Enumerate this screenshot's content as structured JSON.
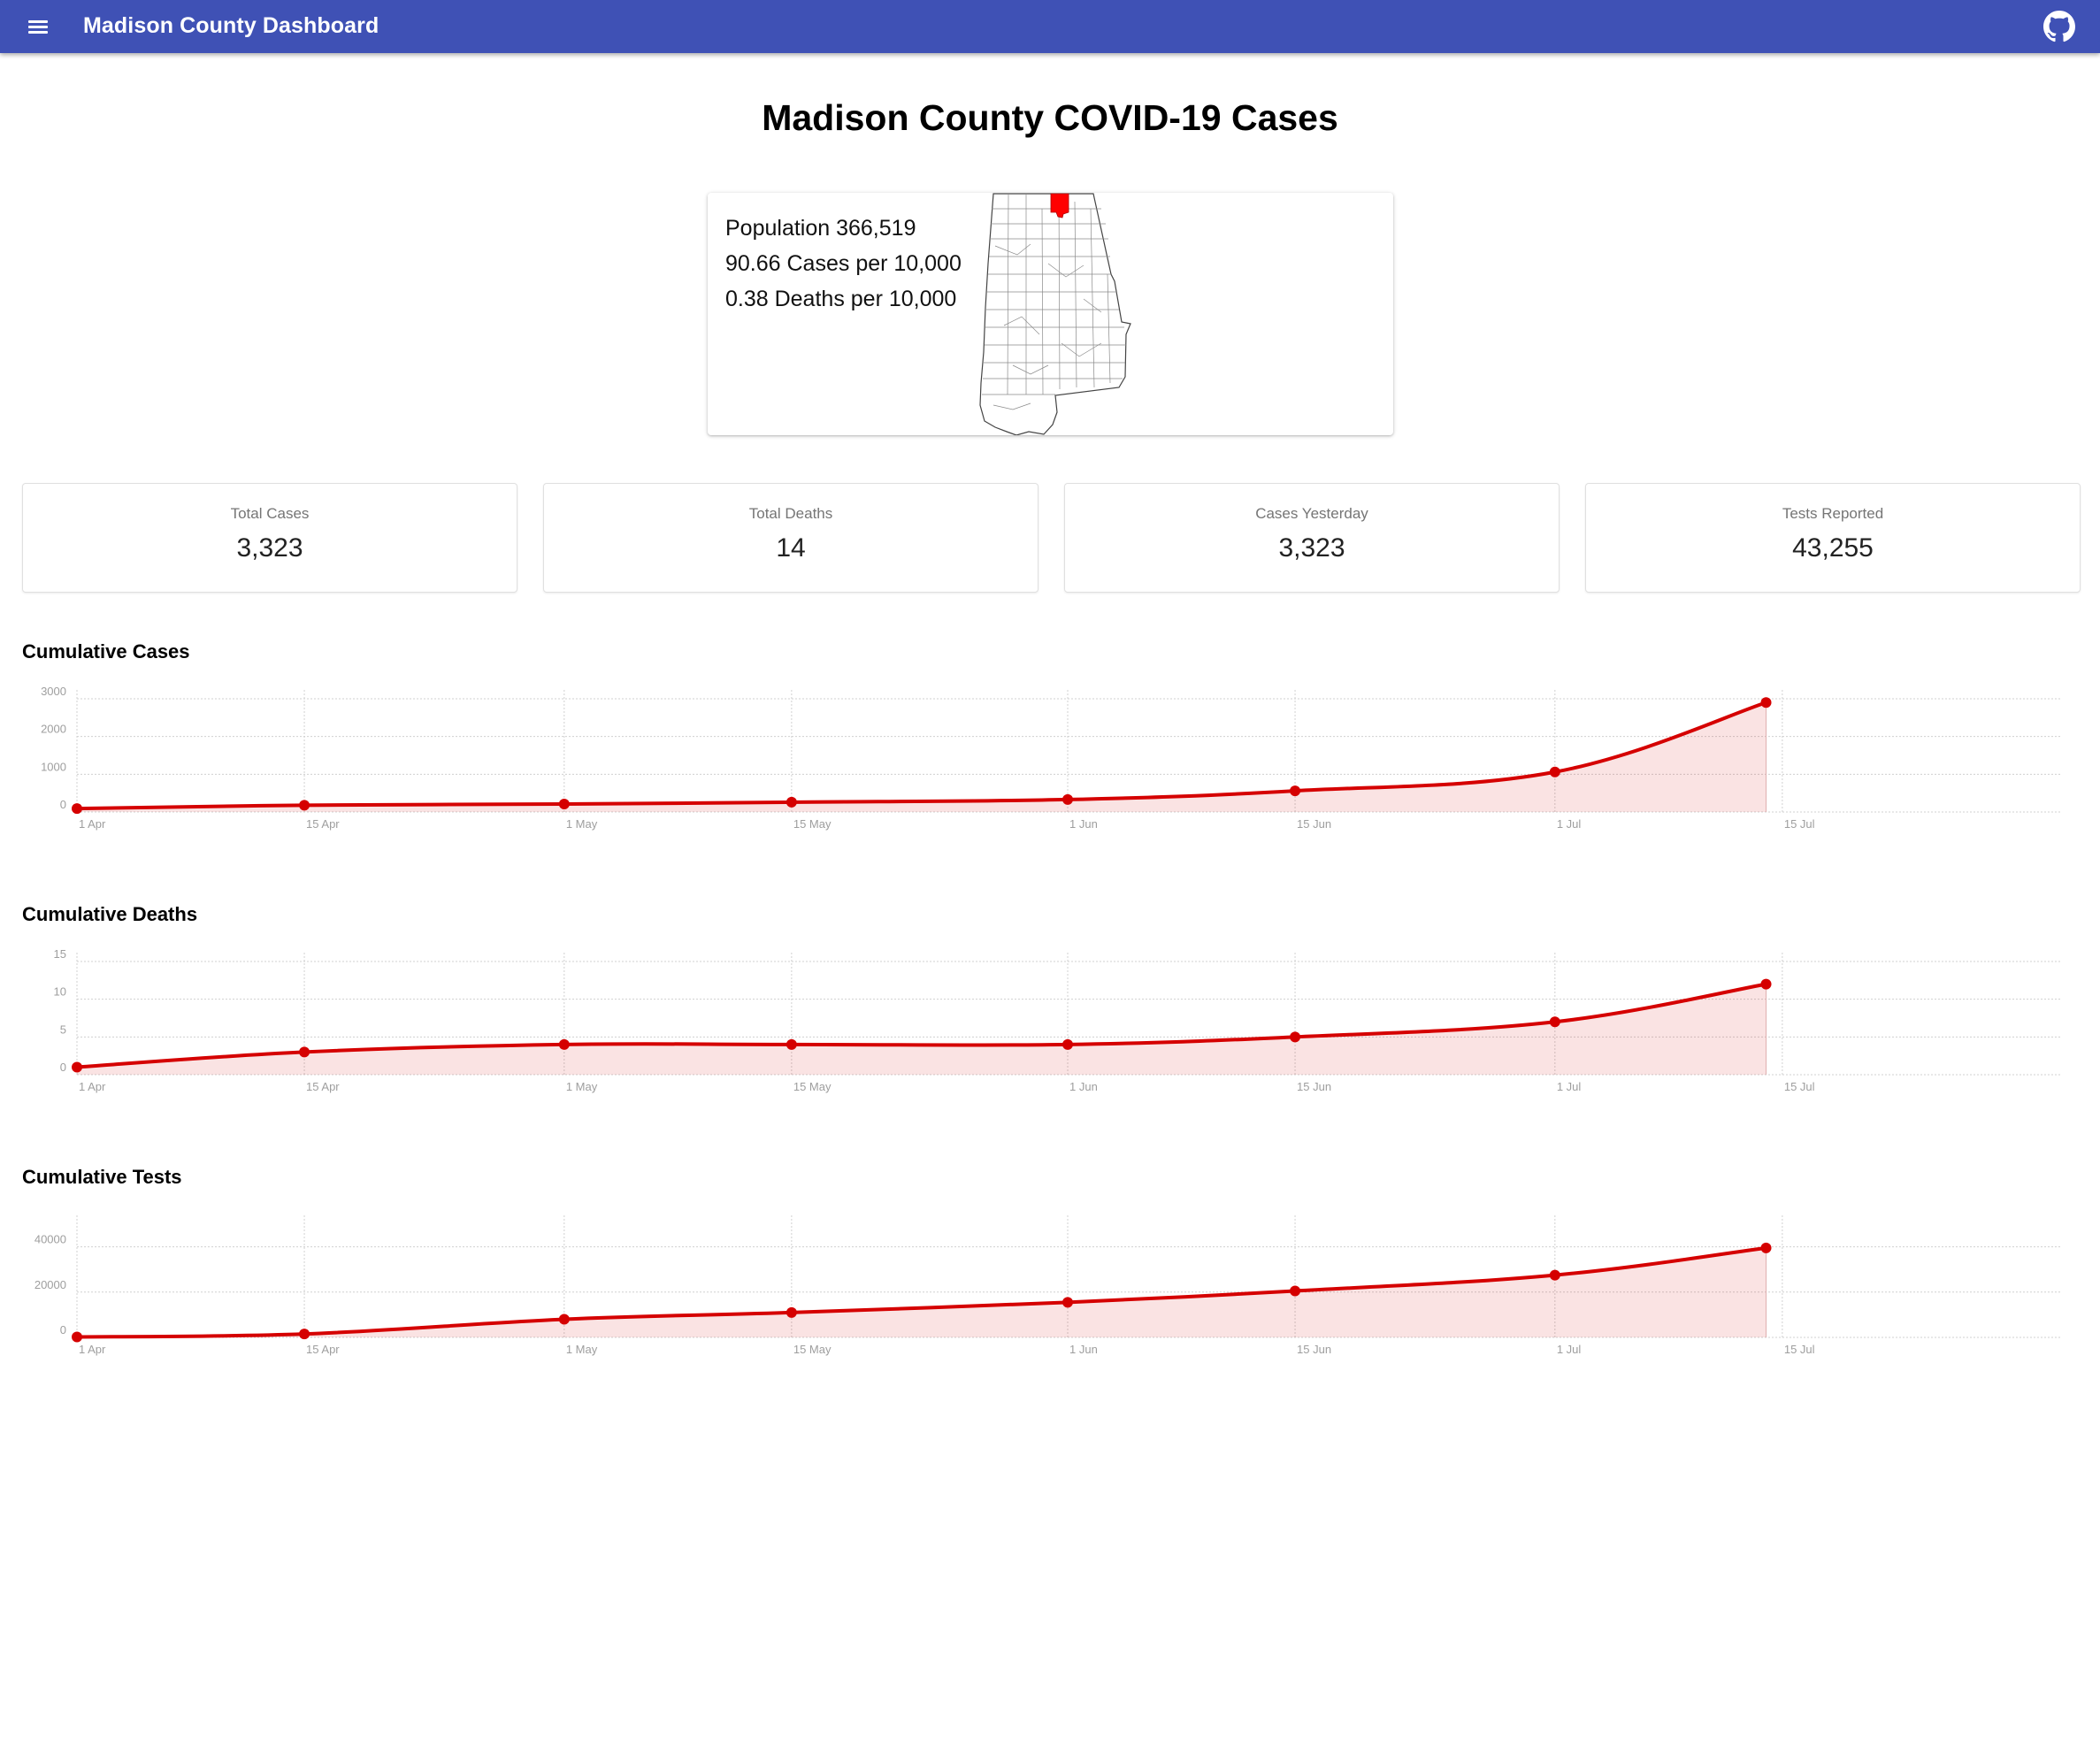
{
  "appbar": {
    "title": "Madison County Dashboard",
    "menu_icon": "menu-icon",
    "github_icon": "github-icon",
    "color": "#3f51b5"
  },
  "page": {
    "title": "Madison County COVID-19 Cases"
  },
  "info_card": {
    "population": "Population 366,519",
    "cases_per": "90.66 Cases per 10,000",
    "deaths_per": "0.38 Deaths per 10,000",
    "highlight_color": "#ff0000"
  },
  "stats": [
    {
      "label": "Total Cases",
      "value": "3,323"
    },
    {
      "label": "Total Deaths",
      "value": "14"
    },
    {
      "label": "Cases Yesterday",
      "value": "3,323"
    },
    {
      "label": "Tests Reported",
      "value": "43,255"
    }
  ],
  "chart_data": [
    {
      "type": "area",
      "title": "Cumulative Cases",
      "x": [
        "1 Apr",
        "15 Apr",
        "1 May",
        "15 May",
        "1 Jun",
        "15 Jun",
        "1 Jul",
        "15 Jul"
      ],
      "x_points": [
        "1 Apr",
        "15 Apr",
        "1 May",
        "15 May",
        "1 Jun",
        "15 Jun",
        "1 Jul",
        "14 Jul"
      ],
      "values": [
        90,
        180,
        210,
        260,
        330,
        560,
        1060,
        2900
      ],
      "yticks": [
        0,
        1000,
        2000,
        3000
      ],
      "ylim": [
        0,
        3000
      ],
      "color": "#d50000",
      "grid": true
    },
    {
      "type": "area",
      "title": "Cumulative Deaths",
      "x": [
        "1 Apr",
        "15 Apr",
        "1 May",
        "15 May",
        "1 Jun",
        "15 Jun",
        "1 Jul",
        "15 Jul"
      ],
      "x_points": [
        "1 Apr",
        "15 Apr",
        "1 May",
        "15 May",
        "1 Jun",
        "15 Jun",
        "1 Jul",
        "14 Jul"
      ],
      "values": [
        1,
        3,
        4,
        4,
        4,
        5,
        7,
        12
      ],
      "yticks": [
        0,
        5,
        10,
        15
      ],
      "ylim": [
        0,
        15
      ],
      "color": "#d50000",
      "grid": true
    },
    {
      "type": "area",
      "title": "Cumulative Tests",
      "x": [
        "1 Apr",
        "15 Apr",
        "1 May",
        "15 May",
        "1 Jun",
        "15 Jun",
        "1 Jul",
        "15 Jul"
      ],
      "x_points": [
        "1 Apr",
        "15 Apr",
        "1 May",
        "15 May",
        "1 Jun",
        "15 Jun",
        "1 Jul",
        "14 Jul"
      ],
      "values": [
        200,
        1500,
        8000,
        11000,
        15500,
        20500,
        27500,
        39500
      ],
      "yticks": [
        0,
        20000,
        40000
      ],
      "ylim": [
        0,
        50000
      ],
      "color": "#d50000",
      "grid": true
    }
  ]
}
